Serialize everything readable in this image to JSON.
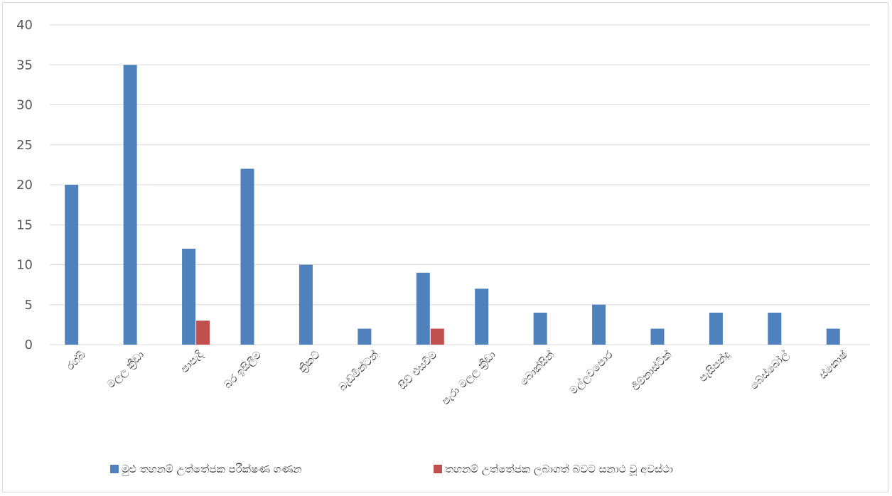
{
  "chart_data": {
    "type": "bar",
    "title": "",
    "xlabel": "",
    "ylabel": "",
    "ylim": [
      0,
      40
    ],
    "yticks": [
      0,
      5,
      10,
      15,
      20,
      25,
      30,
      35,
      40
    ],
    "grid": true,
    "legend_position": "bottom",
    "categories": [
      "රග්බි",
      "මලල ක්‍රීඩා",
      "පාපැදි",
      "බර ඉසිලීම",
      "ක්‍රිකට්",
      "බැඩ්මින්ටන්",
      "සිව් එසවීම",
      "පැරා මලල ක්‍රීඩා",
      "බොක්සින්",
      "මල්ලවපොර",
      "ජිම්නාස්ටික්",
      "පැසිපන්දු",
      "බේස්බෝල්",
      "ස්කොෂ්"
    ],
    "series": [
      {
        "name": "මුළු තහනම් උත්තේජක පරීක්ෂණ ගණන",
        "color": "#4f81bd",
        "values": [
          20,
          35,
          12,
          22,
          10,
          2,
          9,
          7,
          4,
          5,
          2,
          4,
          4,
          2
        ]
      },
      {
        "name": "තහනම් උත්තේජක ලබාගත් බවට සනාථ වූ අවස්ථා",
        "color": "#c0504d",
        "values": [
          0,
          0,
          3,
          0,
          0,
          0,
          2,
          0,
          0,
          0,
          0,
          0,
          0,
          0
        ]
      }
    ]
  }
}
